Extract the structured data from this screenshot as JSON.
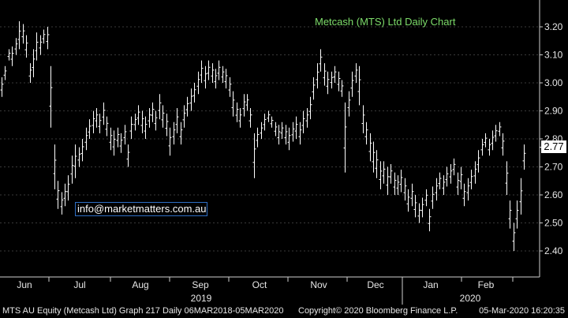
{
  "chart_data": {
    "type": "bar",
    "title": "Metcash (MTS) Ltd Daily Chart",
    "ylim": [
      2.34,
      3.25
    ],
    "y_ticks": [
      "3.20",
      "3.10",
      "3.00",
      "2.90",
      "2.80",
      "2.70",
      "2.60",
      "2.50",
      "2.40"
    ],
    "y_tick_values": [
      3.2,
      3.1,
      3.0,
      2.9,
      2.8,
      2.7,
      2.6,
      2.5,
      2.4
    ],
    "month_labels": [
      "Jun",
      "Jul",
      "Aug",
      "Sep",
      "Oct",
      "Nov",
      "Dec",
      "Jan",
      "Feb"
    ],
    "year_labels": [
      "2019",
      "2020"
    ],
    "last_price": "2.77",
    "grid": true,
    "colors": {
      "bars": "#ffffff",
      "grid": "#3a3a3a",
      "title": "#7ddc6a",
      "axis_text": "#e6e6e6",
      "badge_bg": "#ffffff"
    },
    "series": [
      {
        "values": [
          [
            2.95,
            3.02
          ],
          [
            3.01,
            3.06
          ],
          [
            3.08,
            3.12
          ],
          [
            3.06,
            3.13
          ],
          [
            3.1,
            3.16
          ],
          [
            3.12,
            3.22
          ],
          [
            3.14,
            3.21
          ],
          [
            3.09,
            3.17
          ],
          [
            3.0,
            3.07
          ],
          [
            3.02,
            3.12
          ],
          [
            3.08,
            3.18
          ],
          [
            3.1,
            3.17
          ],
          [
            3.14,
            3.19
          ],
          [
            3.12,
            3.2
          ],
          [
            2.84,
            3.06
          ],
          [
            2.62,
            2.78
          ],
          [
            2.55,
            2.65
          ],
          [
            2.53,
            2.61
          ],
          [
            2.56,
            2.64
          ],
          [
            2.58,
            2.67
          ],
          [
            2.64,
            2.74
          ],
          [
            2.66,
            2.78
          ],
          [
            2.7,
            2.77
          ],
          [
            2.72,
            2.8
          ],
          [
            2.76,
            2.84
          ],
          [
            2.8,
            2.87
          ],
          [
            2.82,
            2.9
          ],
          [
            2.84,
            2.91
          ],
          [
            2.82,
            2.89
          ],
          [
            2.85,
            2.93
          ],
          [
            2.81,
            2.88
          ],
          [
            2.76,
            2.84
          ],
          [
            2.74,
            2.83
          ],
          [
            2.77,
            2.84
          ],
          [
            2.75,
            2.82
          ],
          [
            2.78,
            2.85
          ],
          [
            2.7,
            2.78
          ],
          [
            2.8,
            2.88
          ],
          [
            2.83,
            2.89
          ],
          [
            2.85,
            2.92
          ],
          [
            2.82,
            2.9
          ],
          [
            2.8,
            2.88
          ],
          [
            2.84,
            2.91
          ],
          [
            2.86,
            2.93
          ],
          [
            2.83,
            2.9
          ],
          [
            2.87,
            2.96
          ],
          [
            2.84,
            2.92
          ],
          [
            2.81,
            2.89
          ],
          [
            2.74,
            2.84
          ],
          [
            2.78,
            2.86
          ],
          [
            2.82,
            2.91
          ],
          [
            2.78,
            2.86
          ],
          [
            2.84,
            2.92
          ],
          [
            2.88,
            2.95
          ],
          [
            2.9,
            2.98
          ],
          [
            2.93,
            3.0
          ],
          [
            2.96,
            3.04
          ],
          [
            3.0,
            3.08
          ],
          [
            2.98,
            3.06
          ],
          [
            3.01,
            3.08
          ],
          [
            3.0,
            3.07
          ],
          [
            2.98,
            3.05
          ],
          [
            3.01,
            3.08
          ],
          [
            3.0,
            3.06
          ],
          [
            2.98,
            3.05
          ],
          [
            2.95,
            3.02
          ],
          [
            2.88,
            2.97
          ],
          [
            2.86,
            2.93
          ],
          [
            2.84,
            2.91
          ],
          [
            2.88,
            2.96
          ],
          [
            2.9,
            2.96
          ],
          [
            2.84,
            2.91
          ],
          [
            2.66,
            2.82
          ],
          [
            2.77,
            2.84
          ],
          [
            2.8,
            2.86
          ],
          [
            2.83,
            2.89
          ],
          [
            2.86,
            2.9
          ],
          [
            2.84,
            2.88
          ],
          [
            2.81,
            2.86
          ],
          [
            2.78,
            2.85
          ],
          [
            2.8,
            2.86
          ],
          [
            2.78,
            2.85
          ],
          [
            2.76,
            2.84
          ],
          [
            2.79,
            2.86
          ],
          [
            2.8,
            2.88
          ],
          [
            2.78,
            2.86
          ],
          [
            2.82,
            2.9
          ],
          [
            2.84,
            2.91
          ],
          [
            2.87,
            2.95
          ],
          [
            2.94,
            3.02
          ],
          [
            2.98,
            3.07
          ],
          [
            3.04,
            3.12
          ],
          [
            2.99,
            3.07
          ],
          [
            2.96,
            3.04
          ],
          [
            2.98,
            3.04
          ],
          [
            3.0,
            3.06
          ],
          [
            2.97,
            3.04
          ],
          [
            2.95,
            3.01
          ],
          [
            2.68,
            2.93
          ],
          [
            2.88,
            2.97
          ],
          [
            2.95,
            3.04
          ],
          [
            3.0,
            3.07
          ],
          [
            2.92,
            3.06
          ],
          [
            2.82,
            2.92
          ],
          [
            2.78,
            2.86
          ],
          [
            2.72,
            2.82
          ],
          [
            2.68,
            2.79
          ],
          [
            2.66,
            2.76
          ],
          [
            2.62,
            2.72
          ],
          [
            2.64,
            2.72
          ],
          [
            2.6,
            2.7
          ],
          [
            2.64,
            2.71
          ],
          [
            2.6,
            2.68
          ],
          [
            2.6,
            2.67
          ],
          [
            2.61,
            2.69
          ],
          [
            2.58,
            2.66
          ],
          [
            2.54,
            2.62
          ],
          [
            2.56,
            2.64
          ],
          [
            2.52,
            2.6
          ],
          [
            2.5,
            2.57
          ],
          [
            2.52,
            2.59
          ],
          [
            2.56,
            2.62
          ],
          [
            2.47,
            2.55
          ],
          [
            2.55,
            2.63
          ],
          [
            2.58,
            2.66
          ],
          [
            2.62,
            2.68
          ],
          [
            2.6,
            2.67
          ],
          [
            2.63,
            2.7
          ],
          [
            2.64,
            2.71
          ],
          [
            2.67,
            2.73
          ],
          [
            2.6,
            2.68
          ],
          [
            2.62,
            2.7
          ],
          [
            2.56,
            2.64
          ],
          [
            2.58,
            2.66
          ],
          [
            2.62,
            2.69
          ],
          [
            2.64,
            2.72
          ],
          [
            2.68,
            2.76
          ],
          [
            2.74,
            2.8
          ],
          [
            2.77,
            2.82
          ],
          [
            2.74,
            2.8
          ],
          [
            2.76,
            2.83
          ],
          [
            2.79,
            2.85
          ],
          [
            2.81,
            2.86
          ],
          [
            2.74,
            2.82
          ],
          [
            2.6,
            2.72
          ],
          [
            2.48,
            2.58
          ],
          [
            2.4,
            2.5
          ],
          [
            2.48,
            2.58
          ],
          [
            2.53,
            2.66
          ],
          [
            2.69,
            2.78
          ]
        ]
      }
    ]
  },
  "email_box": "info@marketmatters.com.au",
  "footer": {
    "left": "MTS AU Equity (Metcash Ltd) Graph 217  Daily 06MAR2018-05MAR2020",
    "mid": "Copyright© 2020 Bloomberg Finance L.P.",
    "right": "05-Mar-2020 16:20:35"
  }
}
